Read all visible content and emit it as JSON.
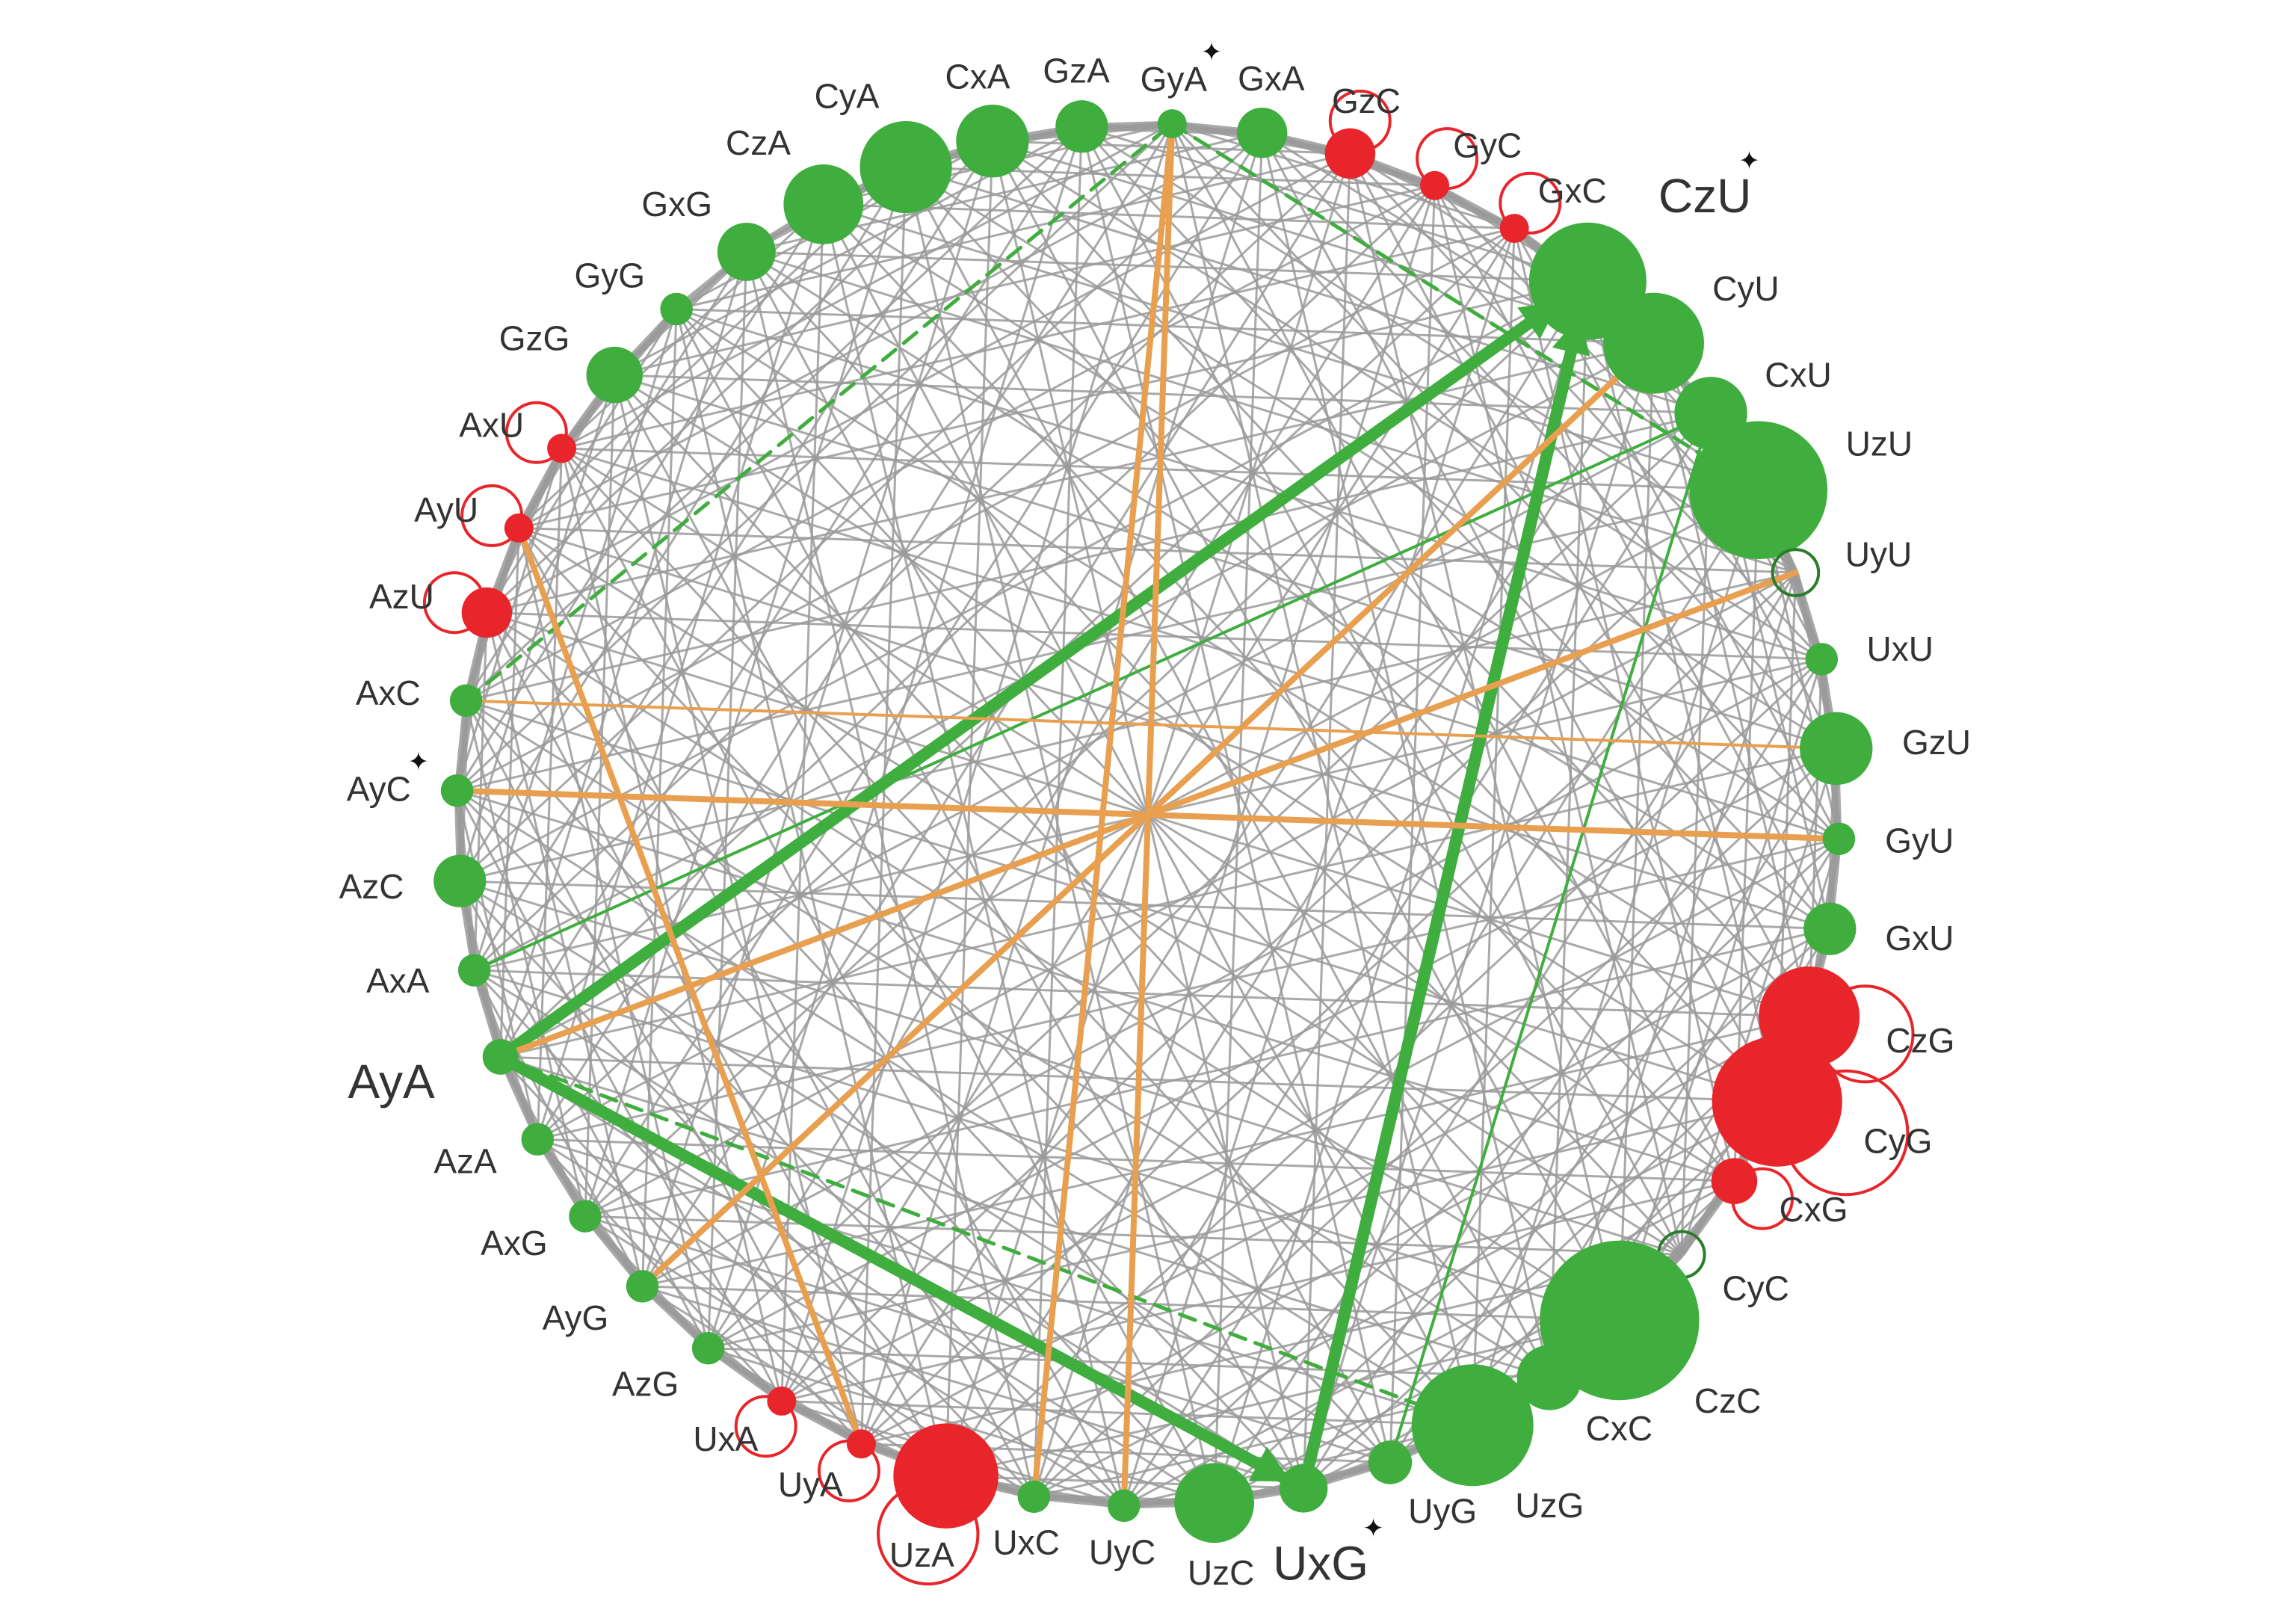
{
  "colors": {
    "green": "#3fae3f",
    "red": "#e8252a",
    "gray_edge": "#9a9a9a",
    "orange_edge": "#e8a050",
    "green_edge": "#3fae3f",
    "self_loop": "#e8252a",
    "star": "#111111"
  },
  "markers": {
    "star": "✦"
  },
  "nodes": [
    {
      "id": "CzA",
      "label": "CzA",
      "color": "green",
      "size": 3
    },
    {
      "id": "CyA",
      "label": "CyA",
      "color": "green",
      "size": 4
    },
    {
      "id": "CxA",
      "label": "CxA",
      "color": "green",
      "size": 2.5
    },
    {
      "id": "GzA",
      "label": "GzA",
      "color": "green",
      "size": 1.3
    },
    {
      "id": "GyA",
      "label": "GyA",
      "color": "green",
      "size": 0.4,
      "star": true
    },
    {
      "id": "GxA",
      "label": "GxA",
      "color": "green",
      "size": 1.2
    },
    {
      "id": "GzC",
      "label": "GzC",
      "color": "red",
      "size": 1.2,
      "self_loop": true
    },
    {
      "id": "GyC",
      "label": "GyC",
      "color": "red",
      "size": 0.4,
      "self_loop": true
    },
    {
      "id": "GxC",
      "label": "GxC",
      "color": "red",
      "size": 0.4,
      "self_loop": true
    },
    {
      "id": "CzU",
      "label": "CzU",
      "color": "green",
      "size": 6.5,
      "star": true
    },
    {
      "id": "CyU",
      "label": "CyU",
      "color": "green",
      "size": 4.8
    },
    {
      "id": "CxU",
      "label": "CxU",
      "color": "green",
      "size": 2.5
    },
    {
      "id": "UzU",
      "label": "UzU",
      "color": "green",
      "size": 9
    },
    {
      "id": "UyU",
      "label": "UyU",
      "color": "green",
      "size": 1.0,
      "hollow": true
    },
    {
      "id": "UxU",
      "label": "UxU",
      "color": "green",
      "size": 0.5
    },
    {
      "id": "GzU",
      "label": "GzU",
      "color": "green",
      "size": 2.5
    },
    {
      "id": "GyU",
      "label": "GyU",
      "color": "green",
      "size": 0.5
    },
    {
      "id": "GxU",
      "label": "GxU",
      "color": "green",
      "size": 1.3
    },
    {
      "id": "CzG",
      "label": "CzG",
      "color": "red",
      "size": 4.8,
      "self_loop": true
    },
    {
      "id": "CyG",
      "label": "CyG",
      "color": "red",
      "size": 8,
      "self_loop": true
    },
    {
      "id": "CxG",
      "label": "CxG",
      "color": "red",
      "size": 1.0,
      "self_loop": true
    },
    {
      "id": "CyC",
      "label": "CyC",
      "color": "green",
      "size": 1.0,
      "hollow": true
    },
    {
      "id": "CzC",
      "label": "CzC",
      "color": "green",
      "size": 12
    },
    {
      "id": "CxC",
      "label": "CxC",
      "color": "green",
      "size": 2.0
    },
    {
      "id": "UzG",
      "label": "UzG",
      "color": "green",
      "size": 7
    },
    {
      "id": "UyG",
      "label": "UyG",
      "color": "green",
      "size": 0.9
    },
    {
      "id": "UxG",
      "label": "UxG",
      "color": "green",
      "size": 1.1,
      "star": true
    },
    {
      "id": "UzC",
      "label": "UzC",
      "color": "green",
      "size": 3
    },
    {
      "id": "UyC",
      "label": "UyC",
      "color": "green",
      "size": 0.5
    },
    {
      "id": "UxC",
      "label": "UxC",
      "color": "green",
      "size": 0.5
    },
    {
      "id": "UzA",
      "label": "UzA",
      "color": "red",
      "size": 5.2,
      "self_loop": true
    },
    {
      "id": "UyA",
      "label": "UyA",
      "color": "red",
      "size": 0.4,
      "self_loop": true
    },
    {
      "id": "UxA",
      "label": "UxA",
      "color": "red",
      "size": 0.4,
      "self_loop": true
    },
    {
      "id": "AzG",
      "label": "AzG",
      "color": "green",
      "size": 0.5
    },
    {
      "id": "AyG",
      "label": "AyG",
      "color": "green",
      "size": 0.5
    },
    {
      "id": "AxG",
      "label": "AxG",
      "color": "green",
      "size": 0.5
    },
    {
      "id": "AzA",
      "label": "AzA",
      "color": "green",
      "size": 0.5
    },
    {
      "id": "AyA",
      "label": "AyA",
      "color": "green",
      "size": 0.6
    },
    {
      "id": "AxA",
      "label": "AxA",
      "color": "green",
      "size": 0.5
    },
    {
      "id": "AzC",
      "label": "AzC",
      "color": "green",
      "size": 1.3
    },
    {
      "id": "AyC",
      "label": "AyC",
      "color": "green",
      "size": 0.5,
      "star": true
    },
    {
      "id": "AxC",
      "label": "AxC",
      "color": "green",
      "size": 0.5
    },
    {
      "id": "AzU",
      "label": "AzU",
      "color": "red",
      "size": 1.2,
      "self_loop": true
    },
    {
      "id": "AyU",
      "label": "AyU",
      "color": "red",
      "size": 0.4,
      "self_loop": true
    },
    {
      "id": "AxU",
      "label": "AxU",
      "color": "red",
      "size": 0.4,
      "self_loop": true
    },
    {
      "id": "GzG",
      "label": "GzG",
      "color": "green",
      "size": 1.5
    },
    {
      "id": "GyG",
      "label": "GyG",
      "color": "green",
      "size": 0.5
    },
    {
      "id": "GxG",
      "label": "GxG",
      "color": "green",
      "size": 1.6
    }
  ],
  "edges": [
    {
      "from": "AyA",
      "to": "CzU",
      "color": "green",
      "weight": "heavy"
    },
    {
      "from": "AyA",
      "to": "UxG",
      "color": "green",
      "weight": "heavy"
    },
    {
      "from": "UxG",
      "to": "CzU",
      "color": "green",
      "weight": "heavy"
    },
    {
      "from": "AxC",
      "to": "GyA",
      "color": "green",
      "weight": "dashed"
    },
    {
      "from": "AxA",
      "to": "CxU",
      "color": "green",
      "weight": "light"
    },
    {
      "from": "AyA",
      "to": "UzG",
      "color": "green",
      "weight": "dashed"
    },
    {
      "from": "UyG",
      "to": "CxU",
      "color": "green",
      "weight": "light"
    },
    {
      "from": "GyA",
      "to": "UzU",
      "color": "green",
      "weight": "dashed"
    },
    {
      "from": "GyA",
      "to": "UyC",
      "color": "orange",
      "weight": "medium"
    },
    {
      "from": "GyA",
      "to": "UxC",
      "color": "orange",
      "weight": "medium"
    },
    {
      "from": "AyU",
      "to": "UyA",
      "color": "orange",
      "weight": "medium"
    },
    {
      "from": "AyC",
      "to": "GyU",
      "color": "orange",
      "weight": "medium"
    },
    {
      "from": "AyG",
      "to": "CyU",
      "color": "orange",
      "weight": "medium"
    },
    {
      "from": "AyA",
      "to": "UyU",
      "color": "orange",
      "weight": "medium"
    },
    {
      "from": "AxC",
      "to": "GzU",
      "color": "orange",
      "weight": "light"
    }
  ]
}
